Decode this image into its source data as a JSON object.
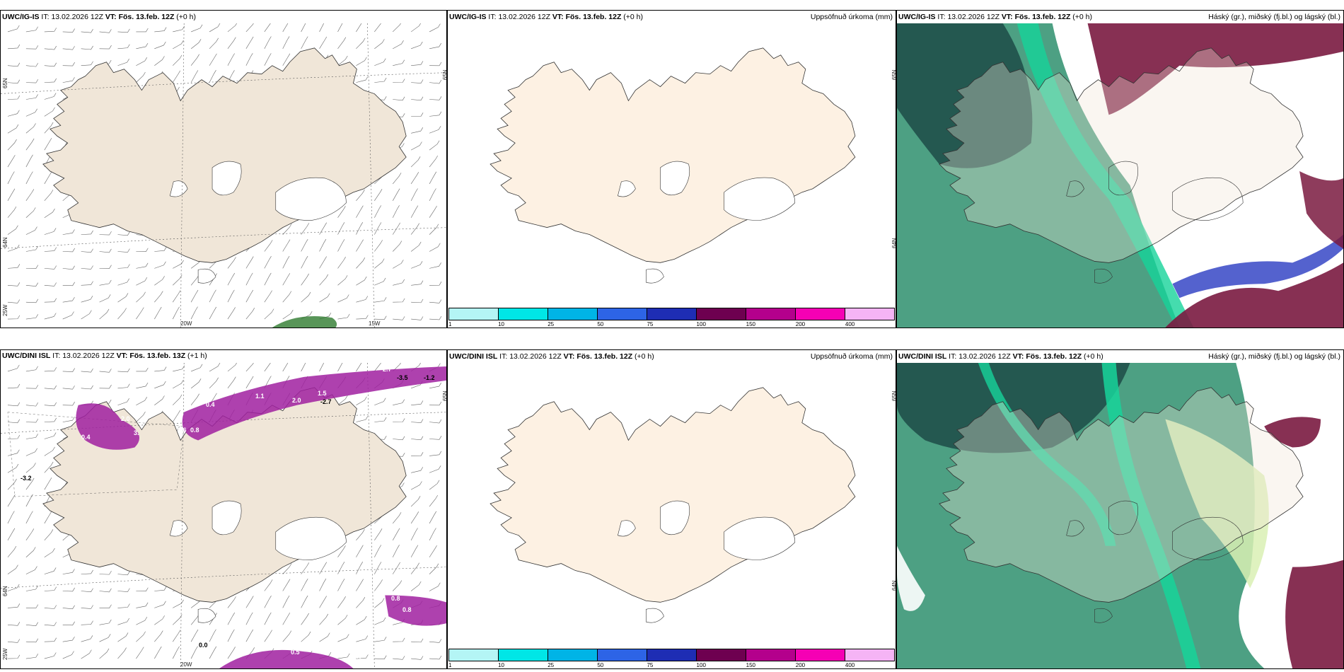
{
  "panels": {
    "p1": {
      "model": "UWC/IG-IS",
      "it_label": "IT:",
      "it_value": "13.02.2026 12Z",
      "vt_label": "VT:",
      "vt_value": "Fös. 13.feb. 12Z",
      "lead": "(+0 h)",
      "right_title": ""
    },
    "p2": {
      "model": "UWC/IG-IS",
      "it_label": "IT:",
      "it_value": "13.02.2026 12Z",
      "vt_label": "VT:",
      "vt_value": "Fös. 13.feb. 12Z",
      "lead": "(+0 h)",
      "right_title": "Uppsöfnuð úrkoma (mm)"
    },
    "p3": {
      "model": "UWC/IG-IS",
      "it_label": "IT:",
      "it_value": "13.02.2026 12Z",
      "vt_label": "VT:",
      "vt_value": "Fös. 13.feb. 12Z",
      "lead": "(+0 h)",
      "right_title": "Háský (gr.), miðský (fj.bl.) og lágský (bl.)"
    },
    "p4": {
      "model": "UWC/DINI ISL",
      "it_label": "IT:",
      "it_value": "13.02.2026 12Z",
      "vt_label": "VT:",
      "vt_value": "Fös. 13.feb. 13Z",
      "lead": "(+1 h)",
      "right_title": ""
    },
    "p5": {
      "model": "UWC/DINI ISL",
      "it_label": "IT:",
      "it_value": "13.02.2026 12Z",
      "vt_label": "VT:",
      "vt_value": "Fös. 13.feb. 12Z",
      "lead": "(+0 h)",
      "right_title": "Uppsöfnuð úrkoma (mm)"
    },
    "p6": {
      "model": "UWC/DINI ISL",
      "it_label": "IT:",
      "it_value": "13.02.2026 12Z",
      "vt_label": "VT:",
      "vt_value": "Fös. 13.feb. 12Z",
      "lead": "(+0 h)",
      "right_title": "Háský (gr.), miðský (fj.bl.) og lágský (bl.)"
    }
  },
  "axis_labels": {
    "n65": "65N",
    "n64": "64N",
    "w25": "25W",
    "w20": "20W",
    "w15": "15W"
  },
  "colorbar": {
    "ticks": [
      "1",
      "10",
      "25",
      "50",
      "75",
      "100",
      "150",
      "200",
      "400"
    ],
    "colors": [
      "#b4f5f5",
      "#00e6e6",
      "#00b4e6",
      "#2d64e6",
      "#1e2db4",
      "#6e0050",
      "#b4008c",
      "#f500b4",
      "#f5b4f5"
    ]
  },
  "overlay_values": [
    "0.3",
    "2.0",
    "3.",
    "2.7",
    "1.1",
    "0.4",
    "-1.2",
    "-3.5",
    "-2.7",
    "1.5",
    "2.0",
    "0.6",
    "0.8",
    "0.4",
    "-3.2",
    "0.8",
    "0.8",
    "0.0",
    "0.5",
    "0.0"
  ],
  "colors": {
    "land": "#f0e6d8",
    "land_precip": "#fdf1e3",
    "cloud_high": "#6e1e3c",
    "cloud_mid": "#3c5fbf",
    "cloud_low": "#2a8a6a",
    "precip_overlay": "#a020a0"
  }
}
